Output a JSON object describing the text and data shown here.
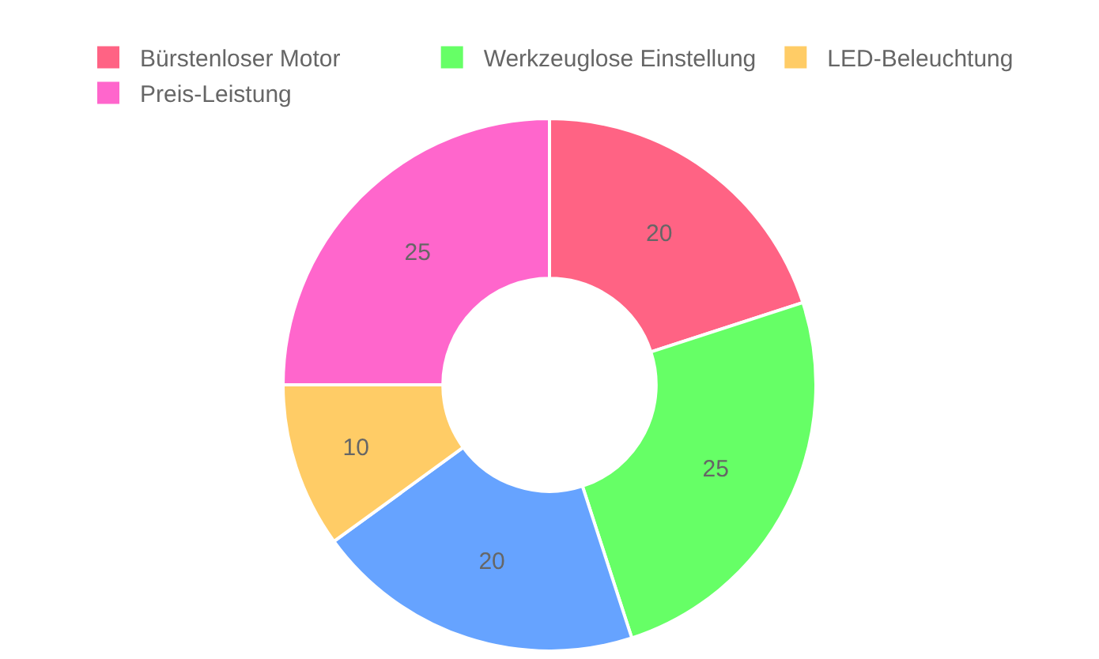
{
  "chart_data": {
    "type": "donut",
    "categories": [
      "Bürstenloser Motor",
      "Werkzeuglose Einstellung",
      null,
      "LED-Beleuchtung",
      "Preis-Leistung"
    ],
    "values": [
      20,
      25,
      20,
      10,
      25
    ],
    "colors": [
      "#ff6384",
      "#66ff66",
      "#66a3ff",
      "#ffcc66",
      "#ff66cc"
    ],
    "data_labels": true,
    "legend": "top"
  }
}
